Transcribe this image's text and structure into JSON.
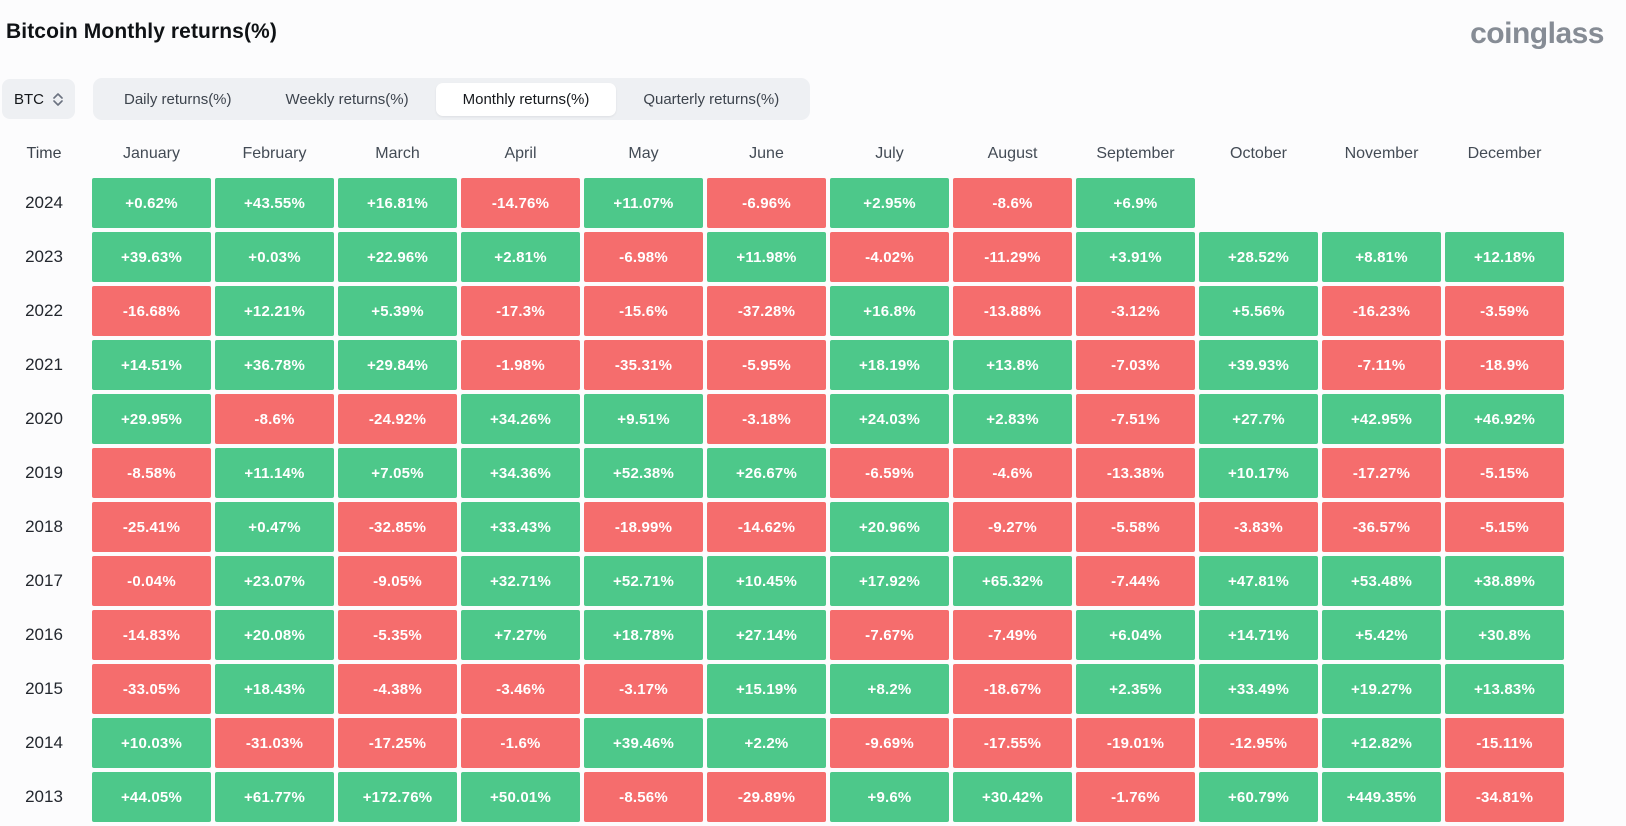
{
  "page": {
    "title": "Bitcoin Monthly returns(%)",
    "brand": "coinglass"
  },
  "controls": {
    "coin": "BTC",
    "tabs": [
      "Daily returns(%)",
      "Weekly returns(%)",
      "Monthly returns(%)",
      "Quarterly returns(%)"
    ],
    "active_tab": "Monthly returns(%)"
  },
  "colors": {
    "positive": "#4dc88a",
    "negative": "#f56d6d"
  },
  "chart_data": {
    "type": "heatmap",
    "title": "Bitcoin Monthly returns(%)",
    "columns": [
      "Time",
      "January",
      "February",
      "March",
      "April",
      "May",
      "June",
      "July",
      "August",
      "September",
      "October",
      "November",
      "December"
    ],
    "rows": [
      {
        "year": "2024",
        "values": [
          "+0.62%",
          "+43.55%",
          "+16.81%",
          "-14.76%",
          "+11.07%",
          "-6.96%",
          "+2.95%",
          "-8.6%",
          "+6.9%",
          "",
          "",
          ""
        ]
      },
      {
        "year": "2023",
        "values": [
          "+39.63%",
          "+0.03%",
          "+22.96%",
          "+2.81%",
          "-6.98%",
          "+11.98%",
          "-4.02%",
          "-11.29%",
          "+3.91%",
          "+28.52%",
          "+8.81%",
          "+12.18%"
        ]
      },
      {
        "year": "2022",
        "values": [
          "-16.68%",
          "+12.21%",
          "+5.39%",
          "-17.3%",
          "-15.6%",
          "-37.28%",
          "+16.8%",
          "-13.88%",
          "-3.12%",
          "+5.56%",
          "-16.23%",
          "-3.59%"
        ]
      },
      {
        "year": "2021",
        "values": [
          "+14.51%",
          "+36.78%",
          "+29.84%",
          "-1.98%",
          "-35.31%",
          "-5.95%",
          "+18.19%",
          "+13.8%",
          "-7.03%",
          "+39.93%",
          "-7.11%",
          "-18.9%"
        ]
      },
      {
        "year": "2020",
        "values": [
          "+29.95%",
          "-8.6%",
          "-24.92%",
          "+34.26%",
          "+9.51%",
          "-3.18%",
          "+24.03%",
          "+2.83%",
          "-7.51%",
          "+27.7%",
          "+42.95%",
          "+46.92%"
        ]
      },
      {
        "year": "2019",
        "values": [
          "-8.58%",
          "+11.14%",
          "+7.05%",
          "+34.36%",
          "+52.38%",
          "+26.67%",
          "-6.59%",
          "-4.6%",
          "-13.38%",
          "+10.17%",
          "-17.27%",
          "-5.15%"
        ]
      },
      {
        "year": "2018",
        "values": [
          "-25.41%",
          "+0.47%",
          "-32.85%",
          "+33.43%",
          "-18.99%",
          "-14.62%",
          "+20.96%",
          "-9.27%",
          "-5.58%",
          "-3.83%",
          "-36.57%",
          "-5.15%"
        ]
      },
      {
        "year": "2017",
        "values": [
          "-0.04%",
          "+23.07%",
          "-9.05%",
          "+32.71%",
          "+52.71%",
          "+10.45%",
          "+17.92%",
          "+65.32%",
          "-7.44%",
          "+47.81%",
          "+53.48%",
          "+38.89%"
        ]
      },
      {
        "year": "2016",
        "values": [
          "-14.83%",
          "+20.08%",
          "-5.35%",
          "+7.27%",
          "+18.78%",
          "+27.14%",
          "-7.67%",
          "-7.49%",
          "+6.04%",
          "+14.71%",
          "+5.42%",
          "+30.8%"
        ]
      },
      {
        "year": "2015",
        "values": [
          "-33.05%",
          "+18.43%",
          "-4.38%",
          "-3.46%",
          "-3.17%",
          "+15.19%",
          "+8.2%",
          "-18.67%",
          "+2.35%",
          "+33.49%",
          "+19.27%",
          "+13.83%"
        ]
      },
      {
        "year": "2014",
        "values": [
          "+10.03%",
          "-31.03%",
          "-17.25%",
          "-1.6%",
          "+39.46%",
          "+2.2%",
          "-9.69%",
          "-17.55%",
          "-19.01%",
          "-12.95%",
          "+12.82%",
          "-15.11%"
        ]
      },
      {
        "year": "2013",
        "values": [
          "+44.05%",
          "+61.77%",
          "+172.76%",
          "+50.01%",
          "-8.56%",
          "-29.89%",
          "+9.6%",
          "+30.42%",
          "-1.76%",
          "+60.79%",
          "+449.35%",
          "-34.81%"
        ]
      }
    ]
  }
}
